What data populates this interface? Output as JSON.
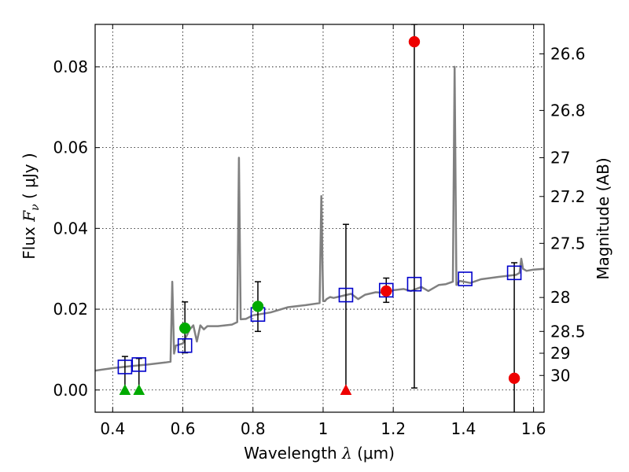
{
  "chart_data": {
    "type": "scatter",
    "xlabel": "Wavelength",
    "xlabel_symbol": "λ",
    "xlabel_unit": "(μm)",
    "ylabel": "Flux",
    "ylabel_symbol": "F",
    "ylabel_subscript": "ν",
    "ylabel_unit": "( μJy )",
    "ylabel_right": "Magnitude (AB)",
    "xlim": [
      0.35,
      1.63
    ],
    "ylim": [
      -0.0055,
      0.0905
    ],
    "grid": true,
    "x_ticks": [
      0.4,
      0.6,
      0.8,
      1.0,
      1.2,
      1.4,
      1.6
    ],
    "x_tick_labels": [
      "0.4",
      "0.6",
      "0.8",
      "1",
      "1.2",
      "1.4",
      "1.6"
    ],
    "y_ticks": [
      0.0,
      0.02,
      0.04,
      0.06,
      0.08
    ],
    "y_tick_labels": [
      "0.00",
      "0.02",
      "0.04",
      "0.06",
      "0.08"
    ],
    "right_ticks": [
      {
        "label": "26.6",
        "flux": 0.0832
      },
      {
        "label": "26.8",
        "flux": 0.0692
      },
      {
        "label": "27",
        "flux": 0.0575
      },
      {
        "label": "27.2",
        "flux": 0.0479
      },
      {
        "label": "27.5",
        "flux": 0.0363
      },
      {
        "label": "28",
        "flux": 0.0229
      },
      {
        "label": "28.5",
        "flux": 0.0145
      },
      {
        "label": "29",
        "flux": 0.0091
      },
      {
        "label": "30",
        "flux": 0.0036
      }
    ],
    "model_spectrum": {
      "name": "model SED",
      "color": "#808080",
      "x": [
        0.35,
        0.4,
        0.45,
        0.5,
        0.55,
        0.565,
        0.57,
        0.575,
        0.58,
        0.6,
        0.62,
        0.63,
        0.64,
        0.65,
        0.66,
        0.67,
        0.7,
        0.72,
        0.74,
        0.755,
        0.76,
        0.765,
        0.78,
        0.8,
        0.85,
        0.9,
        0.95,
        0.99,
        0.995,
        1.0,
        1.005,
        1.01,
        1.02,
        1.03,
        1.05,
        1.08,
        1.1,
        1.12,
        1.15,
        1.18,
        1.2,
        1.23,
        1.25,
        1.28,
        1.3,
        1.33,
        1.35,
        1.37,
        1.375,
        1.38,
        1.385,
        1.39,
        1.42,
        1.45,
        1.5,
        1.55,
        1.56,
        1.565,
        1.57,
        1.58,
        1.6,
        1.63
      ],
      "y": [
        0.0048,
        0.0054,
        0.0059,
        0.0063,
        0.0068,
        0.007,
        0.0268,
        0.009,
        0.011,
        0.0115,
        0.015,
        0.016,
        0.012,
        0.016,
        0.015,
        0.0158,
        0.0158,
        0.016,
        0.0162,
        0.0168,
        0.0575,
        0.0175,
        0.0176,
        0.0185,
        0.0192,
        0.0205,
        0.021,
        0.0215,
        0.048,
        0.022,
        0.022,
        0.0225,
        0.023,
        0.0228,
        0.0232,
        0.0238,
        0.0225,
        0.0236,
        0.0242,
        0.024,
        0.0247,
        0.025,
        0.0245,
        0.0255,
        0.0245,
        0.026,
        0.0262,
        0.0268,
        0.08,
        0.026,
        0.0266,
        0.027,
        0.0265,
        0.0274,
        0.028,
        0.0285,
        0.029,
        0.0325,
        0.03,
        0.0295,
        0.0298,
        0.03
      ]
    },
    "model_photometry": {
      "name": "model photometry",
      "marker": "open-square",
      "color": "#0000cc",
      "x": [
        0.435,
        0.475,
        0.606,
        0.814,
        1.065,
        1.18,
        1.26,
        1.405,
        1.545
      ],
      "y": [
        0.0057,
        0.0063,
        0.011,
        0.0187,
        0.0235,
        0.0247,
        0.0262,
        0.0275,
        0.029
      ]
    },
    "observed_detections": [
      {
        "x": 0.606,
        "y": 0.0153,
        "err_lo": 0.0092,
        "err_hi": 0.0218,
        "color": "#00aa00"
      },
      {
        "x": 0.814,
        "y": 0.0207,
        "err_lo": 0.0145,
        "err_hi": 0.0268,
        "color": "#00aa00"
      },
      {
        "x": 1.18,
        "y": 0.0245,
        "err_lo": 0.0217,
        "err_hi": 0.0277,
        "color": "#ee0000"
      },
      {
        "x": 1.26,
        "y": 0.0862,
        "err_lo": 0.0005,
        "err_hi": 0.0905,
        "color": "#ee0000"
      },
      {
        "x": 1.545,
        "y": 0.0029,
        "err_lo": -0.0055,
        "err_hi": 0.0315,
        "color": "#ee0000"
      }
    ],
    "upper_limits": [
      {
        "x": 0.435,
        "y": 0.0,
        "err_hi": 0.0083,
        "color": "#00aa00"
      },
      {
        "x": 0.475,
        "y": 0.0,
        "err_hi": 0.0078,
        "color": "#00aa00"
      },
      {
        "x": 1.065,
        "y": 0.0,
        "err_hi": 0.041,
        "color": "#ee0000"
      }
    ]
  }
}
